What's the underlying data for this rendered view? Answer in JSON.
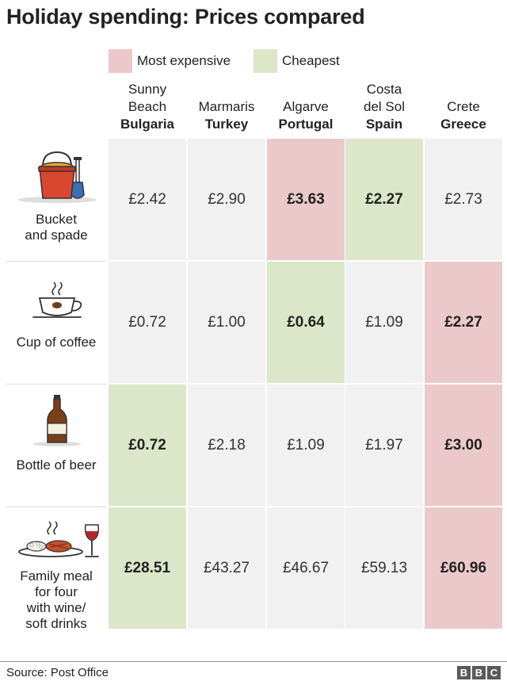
{
  "title": "Holiday spending: Prices compared",
  "legend": {
    "most_expensive": "Most expensive",
    "cheapest": "Cheapest"
  },
  "colors": {
    "most_expensive": "#ebc9cb",
    "cheapest": "#dce7c9",
    "neutral": "#f1f1f1"
  },
  "chart_data": {
    "type": "table",
    "title": "Holiday spending: Prices compared",
    "columns": [
      {
        "location": "Sunny Beach",
        "location_lines": [
          "Sunny",
          "Beach"
        ],
        "country": "Bulgaria"
      },
      {
        "location": "Marmaris",
        "location_lines": [
          "Marmaris"
        ],
        "country": "Turkey"
      },
      {
        "location": "Algarve",
        "location_lines": [
          "Algarve"
        ],
        "country": "Portugal"
      },
      {
        "location": "Costa del Sol",
        "location_lines": [
          "Costa",
          "del Sol"
        ],
        "country": "Spain"
      },
      {
        "location": "Crete",
        "location_lines": [
          "Crete"
        ],
        "country": "Greece"
      }
    ],
    "rows": [
      {
        "item": "Bucket and spade",
        "item_lines": [
          "Bucket",
          "and spade"
        ],
        "icon": "bucket-and-spade-icon",
        "values": [
          "£2.42",
          "£2.90",
          "£3.63",
          "£2.27",
          "£2.73"
        ],
        "most_expensive": 2,
        "cheapest": 3
      },
      {
        "item": "Cup of coffee",
        "item_lines": [
          "Cup of coffee"
        ],
        "icon": "coffee-cup-icon",
        "values": [
          "£0.72",
          "£1.00",
          "£0.64",
          "£1.09",
          "£2.27"
        ],
        "most_expensive": 4,
        "cheapest": 2
      },
      {
        "item": "Bottle of beer",
        "item_lines": [
          "Bottle of beer"
        ],
        "icon": "beer-bottle-icon",
        "values": [
          "£0.72",
          "£2.18",
          "£1.09",
          "£1.97",
          "£3.00"
        ],
        "most_expensive": 4,
        "cheapest": 0
      },
      {
        "item": "Family meal for four with wine/ soft drinks",
        "item_lines": [
          "Family meal",
          "for four",
          "with wine/",
          "soft drinks"
        ],
        "icon": "meal-and-wine-icon",
        "values": [
          "£28.51",
          "£43.27",
          "£46.67",
          "£59.13",
          "£60.96"
        ],
        "most_expensive": 4,
        "cheapest": 0
      }
    ]
  },
  "footer": {
    "source": "Source: Post Office",
    "logo_letters": [
      "B",
      "B",
      "C"
    ]
  }
}
